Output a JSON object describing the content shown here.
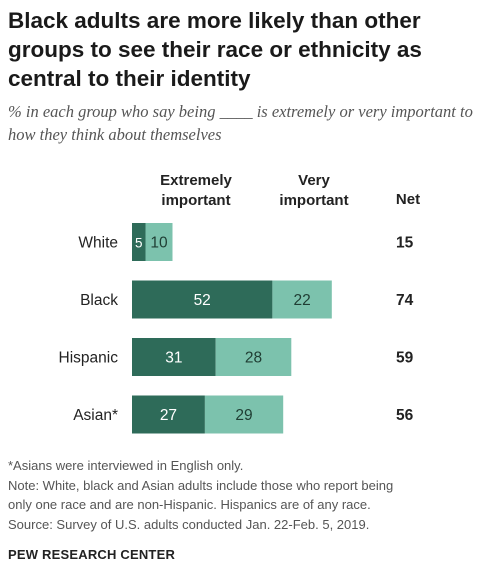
{
  "title": "Black adults are more likely than other groups to see their race or ethnicity as central to their identity",
  "subtitle": "% in each group who say being ____ is extremely or very important to how they think about themselves",
  "notes": [
    "*Asians were interviewed in English only.",
    "Note: White, black and Asian adults include those who report being",
    "only one race and are non-Hispanic. Hispanics are of any race.",
    "Source: Survey of U.S. adults conducted Jan. 22-Feb. 5, 2019."
  ],
  "source_brand": "PEW RESEARCH CENTER",
  "colors": {
    "extremely": "#2e6b59",
    "very": "#7cc2ad",
    "label_on_dark": "#ffffff",
    "label_on_light": "#1f3d33"
  },
  "chart_data": {
    "type": "bar",
    "orientation": "horizontal",
    "stacked": true,
    "categories": [
      "White",
      "Black",
      "Hispanic",
      "Asian*"
    ],
    "series": [
      {
        "name": "Extremely important",
        "values": [
          5,
          52,
          31,
          27
        ]
      },
      {
        "name": "Very important",
        "values": [
          10,
          22,
          28,
          29
        ]
      }
    ],
    "net_header": "Net",
    "net": [
      15,
      74,
      59,
      56
    ],
    "header_lines": [
      [
        "Extremely",
        "important"
      ],
      [
        "Very",
        "important"
      ]
    ]
  }
}
